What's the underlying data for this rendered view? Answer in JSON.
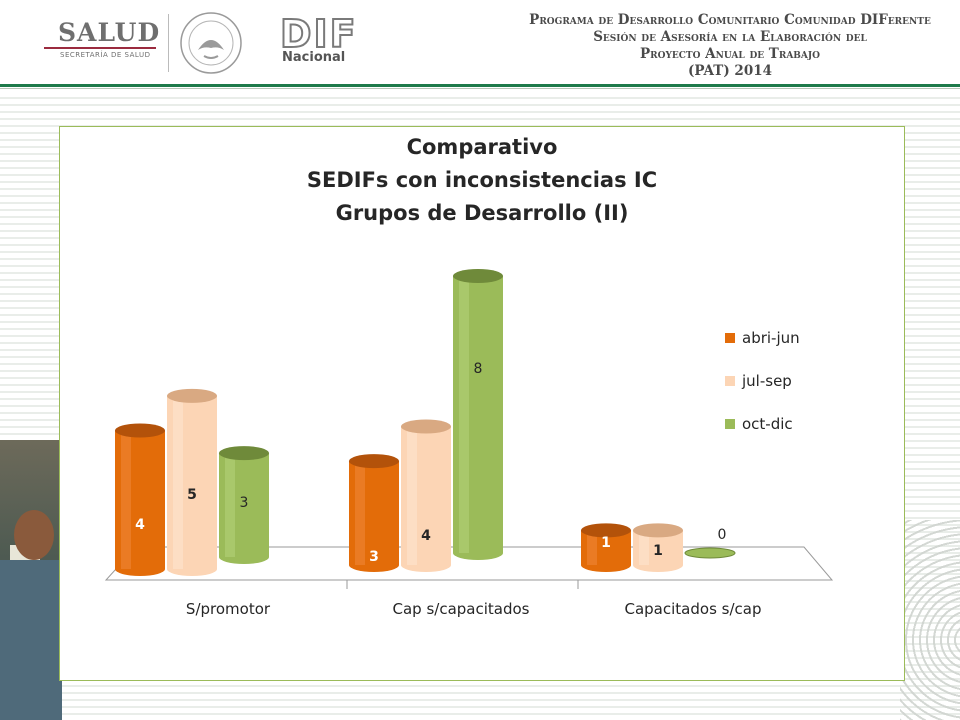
{
  "header": {
    "salud_logo": "SALUD",
    "salud_sub": "SECRETARÍA DE SALUD",
    "dif_logo": "DIF",
    "dif_sub": "Nacional",
    "program_lines": [
      "Programa de Desarrollo Comunitario Comunidad DIFerente",
      "Sesión de Asesoría en la Elaboración del",
      "Proyecto Anual de Trabajo",
      "(PAT) 2014"
    ]
  },
  "colors": {
    "abri_jun": "#e36c09",
    "jul_sep": "#fcd5b5",
    "oct_dic": "#9bbb59",
    "frame": "#9bbb59",
    "header_rule": "#1e7a4a"
  },
  "chart_data": {
    "type": "bar",
    "title_lines": [
      "Comparativo",
      "SEDIFs con inconsistencias IC",
      "Grupos de Desarrollo (II)"
    ],
    "categories": [
      "S/promotor",
      "Cap s/capacitados",
      "Capacitados s/cap"
    ],
    "series": [
      {
        "name": "abri-jun",
        "values": [
          4,
          3,
          1
        ]
      },
      {
        "name": "jul-sep",
        "values": [
          5,
          4,
          1
        ]
      },
      {
        "name": "oct-dic",
        "values": [
          3,
          8,
          0
        ]
      }
    ],
    "ylim": [
      0,
      8
    ],
    "grid": false,
    "legend": "right",
    "style": "3d-cylinder"
  }
}
